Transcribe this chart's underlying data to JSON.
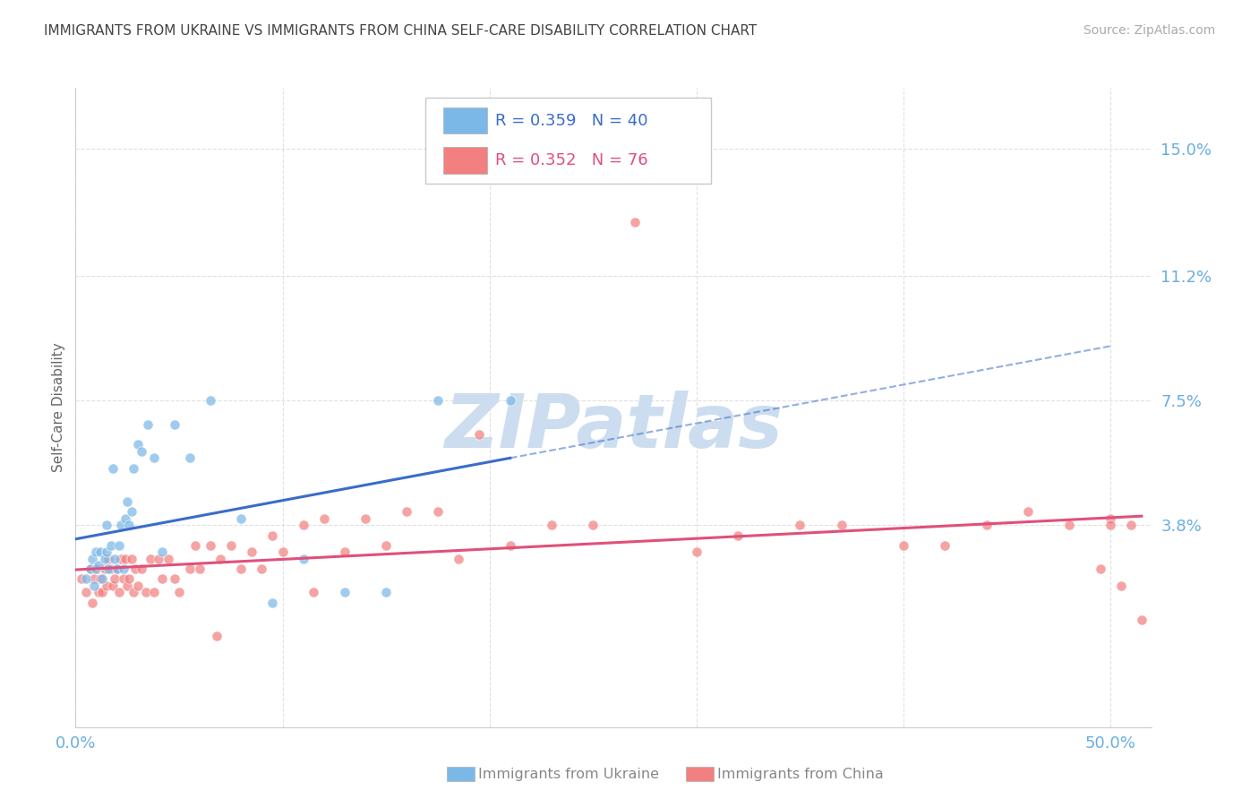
{
  "title": "IMMIGRANTS FROM UKRAINE VS IMMIGRANTS FROM CHINA SELF-CARE DISABILITY CORRELATION CHART",
  "source": "Source: ZipAtlas.com",
  "ylabel": "Self-Care Disability",
  "ytick_values": [
    0.0,
    0.038,
    0.075,
    0.112,
    0.15
  ],
  "ytick_labels": [
    "",
    "3.8%",
    "7.5%",
    "11.2%",
    "15.0%"
  ],
  "xtick_values": [
    0.0,
    0.1,
    0.2,
    0.3,
    0.4,
    0.5
  ],
  "xlim": [
    0.0,
    0.52
  ],
  "ylim": [
    -0.022,
    0.168
  ],
  "ukraine_R": 0.359,
  "ukraine_N": 40,
  "china_R": 0.352,
  "china_N": 76,
  "ukraine_color": "#7bb8e8",
  "china_color": "#f28080",
  "ukraine_line_color": "#3a6cc8",
  "china_line_color": "#e0507a",
  "ukraine_x": [
    0.005,
    0.007,
    0.008,
    0.009,
    0.01,
    0.01,
    0.011,
    0.012,
    0.013,
    0.014,
    0.015,
    0.015,
    0.016,
    0.017,
    0.018,
    0.019,
    0.02,
    0.021,
    0.022,
    0.023,
    0.024,
    0.025,
    0.026,
    0.027,
    0.028,
    0.03,
    0.032,
    0.035,
    0.038,
    0.042,
    0.048,
    0.055,
    0.065,
    0.08,
    0.095,
    0.11,
    0.13,
    0.15,
    0.175,
    0.21
  ],
  "ukraine_y": [
    0.022,
    0.025,
    0.028,
    0.02,
    0.025,
    0.03,
    0.026,
    0.03,
    0.022,
    0.028,
    0.03,
    0.038,
    0.025,
    0.032,
    0.055,
    0.028,
    0.025,
    0.032,
    0.038,
    0.025,
    0.04,
    0.045,
    0.038,
    0.042,
    0.055,
    0.062,
    0.06,
    0.068,
    0.058,
    0.03,
    0.068,
    0.058,
    0.075,
    0.04,
    0.015,
    0.028,
    0.018,
    0.018,
    0.075,
    0.075
  ],
  "china_x": [
    0.003,
    0.005,
    0.007,
    0.008,
    0.009,
    0.01,
    0.011,
    0.012,
    0.013,
    0.014,
    0.015,
    0.016,
    0.017,
    0.018,
    0.019,
    0.02,
    0.021,
    0.022,
    0.023,
    0.024,
    0.025,
    0.026,
    0.027,
    0.028,
    0.029,
    0.03,
    0.032,
    0.034,
    0.036,
    0.038,
    0.04,
    0.042,
    0.045,
    0.048,
    0.05,
    0.055,
    0.058,
    0.06,
    0.065,
    0.068,
    0.07,
    0.075,
    0.08,
    0.085,
    0.09,
    0.095,
    0.1,
    0.11,
    0.115,
    0.12,
    0.13,
    0.14,
    0.15,
    0.16,
    0.175,
    0.185,
    0.195,
    0.21,
    0.23,
    0.25,
    0.27,
    0.3,
    0.32,
    0.35,
    0.37,
    0.4,
    0.42,
    0.44,
    0.46,
    0.48,
    0.495,
    0.5,
    0.505,
    0.51,
    0.515,
    0.5
  ],
  "china_y": [
    0.022,
    0.018,
    0.025,
    0.015,
    0.022,
    0.025,
    0.018,
    0.022,
    0.018,
    0.025,
    0.02,
    0.028,
    0.025,
    0.02,
    0.022,
    0.025,
    0.018,
    0.028,
    0.022,
    0.028,
    0.02,
    0.022,
    0.028,
    0.018,
    0.025,
    0.02,
    0.025,
    0.018,
    0.028,
    0.018,
    0.028,
    0.022,
    0.028,
    0.022,
    0.018,
    0.025,
    0.032,
    0.025,
    0.032,
    0.005,
    0.028,
    0.032,
    0.025,
    0.03,
    0.025,
    0.035,
    0.03,
    0.038,
    0.018,
    0.04,
    0.03,
    0.04,
    0.032,
    0.042,
    0.042,
    0.028,
    0.065,
    0.032,
    0.038,
    0.038,
    0.128,
    0.03,
    0.035,
    0.038,
    0.038,
    0.032,
    0.032,
    0.038,
    0.042,
    0.038,
    0.025,
    0.04,
    0.02,
    0.038,
    0.01,
    0.038
  ],
  "watermark_text": "ZIPatlas",
  "watermark_color": "#ccddf0",
  "background_color": "#ffffff",
  "grid_color": "#e0e0e0",
  "axis_tick_color": "#6aaee0",
  "title_color": "#444444",
  "source_color": "#aaaaaa",
  "ylabel_color": "#666666",
  "legend_ukraine_label": "Immigrants from Ukraine",
  "legend_china_label": "Immigrants from China",
  "legend_bottom_color": "#888888"
}
